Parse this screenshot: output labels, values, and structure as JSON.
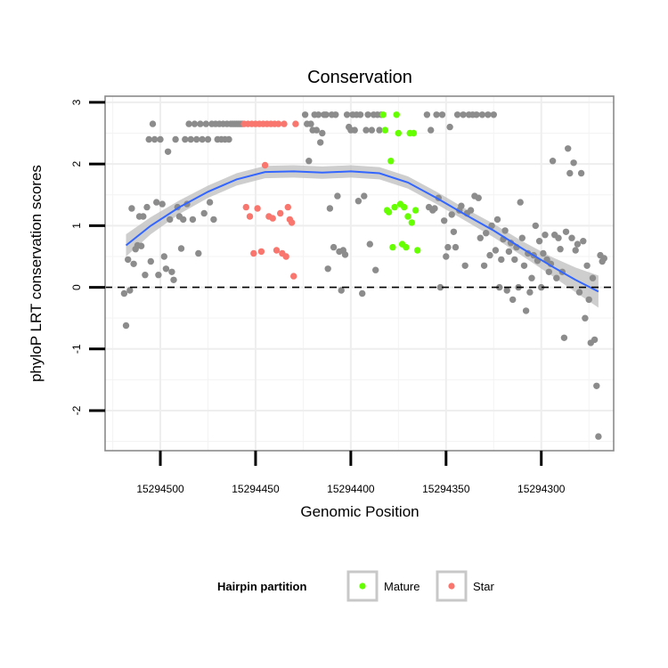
{
  "chart_data": {
    "type": "scatter",
    "title": "Conservation",
    "xlabel": "Genomic Position",
    "ylabel": "phyloP LRT conservation scores",
    "x_reversed": true,
    "xlim": [
      15294529,
      15294262
    ],
    "ylim": [
      -2.65,
      3.1
    ],
    "x_ticks": [
      15294500,
      15294450,
      15294400,
      15294350,
      15294300
    ],
    "x_tick_labels": [
      "15294500",
      "15294450",
      "15294400",
      "15294350",
      "15294300"
    ],
    "y_ticks": [
      -2,
      -1,
      0,
      1,
      2,
      3
    ],
    "y_tick_labels": [
      "-2",
      "-1",
      "0",
      "1",
      "2",
      "3"
    ],
    "reference_line": {
      "y": 0,
      "style": "dashed"
    },
    "grid": true,
    "legend": {
      "title": "Hairpin partition",
      "position": "bottom",
      "entries": [
        {
          "label": "Mature",
          "color": "#66ff00"
        },
        {
          "label": "Star",
          "color": "#f8766d"
        }
      ]
    },
    "colors": {
      "other": "#8c8c8c",
      "mature": "#66ff00",
      "star": "#f8766d",
      "smooth": "#3366ff",
      "ribbon": "#bebebe"
    },
    "smooth_fit": {
      "x": [
        15294518,
        15294505,
        15294490,
        15294475,
        15294460,
        15294445,
        15294430,
        15294415,
        15294400,
        15294385,
        15294370,
        15294355,
        15294340,
        15294325,
        15294310,
        15294295,
        15294282,
        15294270
      ],
      "y": [
        0.68,
        1.0,
        1.3,
        1.55,
        1.75,
        1.87,
        1.88,
        1.86,
        1.88,
        1.85,
        1.7,
        1.45,
        1.18,
        0.92,
        0.63,
        0.35,
        0.12,
        -0.07
      ],
      "se": [
        0.18,
        0.14,
        0.11,
        0.1,
        0.1,
        0.1,
        0.1,
        0.1,
        0.1,
        0.1,
        0.1,
        0.1,
        0.1,
        0.11,
        0.12,
        0.15,
        0.2,
        0.26
      ]
    },
    "series": [
      {
        "name": "Other",
        "points": [
          [
            15294519,
            -0.1
          ],
          [
            15294518,
            -0.62
          ],
          [
            15294517,
            0.45
          ],
          [
            15294516,
            -0.05
          ],
          [
            15294515,
            1.28
          ],
          [
            15294514,
            0.38
          ],
          [
            15294513,
            0.62
          ],
          [
            15294512,
            0.68
          ],
          [
            15294511,
            1.15
          ],
          [
            15294510,
            0.67
          ],
          [
            15294509,
            1.15
          ],
          [
            15294508,
            0.2
          ],
          [
            15294507,
            1.3
          ],
          [
            15294506,
            2.4
          ],
          [
            15294505,
            0.42
          ],
          [
            15294504,
            2.65
          ],
          [
            15294503,
            2.4
          ],
          [
            15294502,
            1.38
          ],
          [
            15294501,
            0.2
          ],
          [
            15294500,
            2.4
          ],
          [
            15294499,
            1.35
          ],
          [
            15294498,
            0.5
          ],
          [
            15294497,
            0.3
          ],
          [
            15294496,
            2.2
          ],
          [
            15294495,
            1.1
          ],
          [
            15294494,
            0.25
          ],
          [
            15294493,
            0.12
          ],
          [
            15294492,
            2.4
          ],
          [
            15294491,
            1.3
          ],
          [
            15294490,
            1.15
          ],
          [
            15294489,
            0.63
          ],
          [
            15294488,
            1.1
          ],
          [
            15294487,
            2.4
          ],
          [
            15294486,
            1.35
          ],
          [
            15294485,
            2.65
          ],
          [
            15294484,
            2.4
          ],
          [
            15294483,
            1.1
          ],
          [
            15294482,
            2.65
          ],
          [
            15294481,
            2.4
          ],
          [
            15294480,
            0.55
          ],
          [
            15294479,
            2.65
          ],
          [
            15294478,
            2.4
          ],
          [
            15294477,
            1.2
          ],
          [
            15294476,
            2.65
          ],
          [
            15294475,
            2.4
          ],
          [
            15294474,
            1.38
          ],
          [
            15294473,
            2.65
          ],
          [
            15294472,
            1.1
          ],
          [
            15294471,
            2.65
          ],
          [
            15294470,
            2.4
          ],
          [
            15294469,
            2.65
          ],
          [
            15294468,
            2.4
          ],
          [
            15294467,
            2.65
          ],
          [
            15294466,
            2.4
          ],
          [
            15294465,
            2.65
          ],
          [
            15294464,
            2.4
          ],
          [
            15294463,
            2.65
          ],
          [
            15294462,
            2.65
          ],
          [
            15294461,
            2.65
          ],
          [
            15294460,
            2.65
          ],
          [
            15294459,
            2.65
          ],
          [
            15294458,
            2.65
          ],
          [
            15294457,
            2.65
          ],
          [
            15294424,
            2.8
          ],
          [
            15294423,
            2.65
          ],
          [
            15294422,
            2.05
          ],
          [
            15294421,
            2.65
          ],
          [
            15294420,
            2.55
          ],
          [
            15294419,
            2.8
          ],
          [
            15294418,
            2.55
          ],
          [
            15294417,
            2.8
          ],
          [
            15294416,
            2.35
          ],
          [
            15294415,
            2.5
          ],
          [
            15294414,
            2.8
          ],
          [
            15294413,
            2.8
          ],
          [
            15294412,
            0.3
          ],
          [
            15294411,
            1.28
          ],
          [
            15294410,
            2.8
          ],
          [
            15294409,
            0.65
          ],
          [
            15294408,
            2.8
          ],
          [
            15294407,
            1.48
          ],
          [
            15294406,
            0.58
          ],
          [
            15294405,
            -0.05
          ],
          [
            15294404,
            0.6
          ],
          [
            15294403,
            0.53
          ],
          [
            15294402,
            2.8
          ],
          [
            15294401,
            2.6
          ],
          [
            15294400,
            2.55
          ],
          [
            15294399,
            2.8
          ],
          [
            15294398,
            2.55
          ],
          [
            15294397,
            2.8
          ],
          [
            15294396,
            1.4
          ],
          [
            15294395,
            2.8
          ],
          [
            15294394,
            -0.1
          ],
          [
            15294393,
            1.48
          ],
          [
            15294392,
            2.55
          ],
          [
            15294391,
            2.8
          ],
          [
            15294390,
            0.7
          ],
          [
            15294389,
            2.55
          ],
          [
            15294388,
            2.8
          ],
          [
            15294387,
            0.28
          ],
          [
            15294386,
            2.8
          ],
          [
            15294385,
            2.55
          ],
          [
            15294384,
            2.8
          ],
          [
            15294360,
            2.8
          ],
          [
            15294359,
            1.3
          ],
          [
            15294358,
            2.55
          ],
          [
            15294357,
            1.25
          ],
          [
            15294356,
            1.28
          ],
          [
            15294355,
            2.8
          ],
          [
            15294354,
            1.45
          ],
          [
            15294353,
            0.0
          ],
          [
            15294352,
            2.8
          ],
          [
            15294351,
            1.08
          ],
          [
            15294350,
            0.5
          ],
          [
            15294349,
            0.65
          ],
          [
            15294348,
            2.6
          ],
          [
            15294347,
            1.18
          ],
          [
            15294346,
            0.9
          ],
          [
            15294345,
            0.65
          ],
          [
            15294344,
            2.8
          ],
          [
            15294343,
            1.25
          ],
          [
            15294342,
            1.32
          ],
          [
            15294341,
            2.8
          ],
          [
            15294340,
            0.35
          ],
          [
            15294339,
            1.2
          ],
          [
            15294338,
            2.8
          ],
          [
            15294337,
            1.25
          ],
          [
            15294336,
            2.8
          ],
          [
            15294335,
            1.48
          ],
          [
            15294334,
            2.8
          ],
          [
            15294333,
            1.45
          ],
          [
            15294332,
            0.8
          ],
          [
            15294331,
            2.8
          ],
          [
            15294330,
            0.35
          ],
          [
            15294329,
            0.88
          ],
          [
            15294328,
            2.8
          ],
          [
            15294327,
            0.52
          ],
          [
            15294326,
            1.0
          ],
          [
            15294325,
            2.8
          ],
          [
            15294324,
            0.6
          ],
          [
            15294323,
            1.1
          ],
          [
            15294322,
            0.0
          ],
          [
            15294321,
            0.45
          ],
          [
            15294320,
            0.78
          ],
          [
            15294319,
            0.92
          ],
          [
            15294318,
            -0.05
          ],
          [
            15294317,
            0.58
          ],
          [
            15294316,
            0.72
          ],
          [
            15294315,
            -0.2
          ],
          [
            15294314,
            0.45
          ],
          [
            15294313,
            0.65
          ],
          [
            15294312,
            0.0
          ],
          [
            15294311,
            1.38
          ],
          [
            15294310,
            0.8
          ],
          [
            15294309,
            0.35
          ],
          [
            15294308,
            -0.38
          ],
          [
            15294307,
            0.55
          ],
          [
            15294306,
            -0.08
          ],
          [
            15294305,
            0.15
          ],
          [
            15294304,
            0.52
          ],
          [
            15294303,
            1.0
          ],
          [
            15294302,
            0.43
          ],
          [
            15294301,
            0.75
          ],
          [
            15294300,
            0.0
          ],
          [
            15294299,
            0.55
          ],
          [
            15294298,
            0.85
          ],
          [
            15294297,
            0.45
          ],
          [
            15294296,
            0.25
          ],
          [
            15294295,
            0.38
          ],
          [
            15294294,
            2.05
          ],
          [
            15294293,
            0.85
          ],
          [
            15294292,
            0.15
          ],
          [
            15294291,
            0.8
          ],
          [
            15294290,
            0.62
          ],
          [
            15294289,
            0.25
          ],
          [
            15294288,
            -0.82
          ],
          [
            15294287,
            0.9
          ],
          [
            15294286,
            2.25
          ],
          [
            15294285,
            1.85
          ],
          [
            15294284,
            0.8
          ],
          [
            15294283,
            2.02
          ],
          [
            15294282,
            0.6
          ],
          [
            15294281,
            0.7
          ],
          [
            15294280,
            -0.08
          ],
          [
            15294279,
            1.85
          ],
          [
            15294278,
            0.75
          ],
          [
            15294277,
            -0.5
          ],
          [
            15294276,
            0.35
          ],
          [
            15294275,
            -0.2
          ],
          [
            15294274,
            -0.9
          ],
          [
            15294273,
            0.15
          ],
          [
            15294272,
            -0.85
          ],
          [
            15294271,
            -1.6
          ],
          [
            15294270,
            -2.42
          ],
          [
            15294269,
            0.52
          ],
          [
            15294268,
            0.42
          ],
          [
            15294267,
            0.47
          ]
        ]
      },
      {
        "name": "Mature",
        "points": [
          [
            15294383,
            2.8
          ],
          [
            15294382,
            2.55
          ],
          [
            15294381,
            1.25
          ],
          [
            15294380,
            1.22
          ],
          [
            15294379,
            2.05
          ],
          [
            15294378,
            0.65
          ],
          [
            15294377,
            1.3
          ],
          [
            15294376,
            2.8
          ],
          [
            15294375,
            2.5
          ],
          [
            15294374,
            1.35
          ],
          [
            15294373,
            0.7
          ],
          [
            15294372,
            1.3
          ],
          [
            15294371,
            0.65
          ],
          [
            15294370,
            1.15
          ],
          [
            15294369,
            2.5
          ],
          [
            15294368,
            1.05
          ],
          [
            15294367,
            2.5
          ],
          [
            15294366,
            1.25
          ],
          [
            15294365,
            0.6
          ]
        ]
      },
      {
        "name": "Star",
        "points": [
          [
            15294456,
            2.65
          ],
          [
            15294455,
            1.3
          ],
          [
            15294454,
            2.65
          ],
          [
            15294453,
            1.15
          ],
          [
            15294452,
            2.65
          ],
          [
            15294451,
            0.55
          ],
          [
            15294450,
            2.65
          ],
          [
            15294449,
            1.28
          ],
          [
            15294448,
            2.65
          ],
          [
            15294447,
            0.58
          ],
          [
            15294446,
            2.65
          ],
          [
            15294445,
            1.98
          ],
          [
            15294444,
            2.65
          ],
          [
            15294443,
            1.15
          ],
          [
            15294442,
            2.65
          ],
          [
            15294441,
            1.12
          ],
          [
            15294440,
            2.65
          ],
          [
            15294439,
            0.6
          ],
          [
            15294438,
            2.65
          ],
          [
            15294437,
            1.2
          ],
          [
            15294436,
            0.55
          ],
          [
            15294435,
            2.65
          ],
          [
            15294434,
            0.5
          ],
          [
            15294433,
            1.3
          ],
          [
            15294432,
            1.1
          ],
          [
            15294431,
            1.05
          ],
          [
            15294430,
            0.18
          ],
          [
            15294429,
            2.65
          ]
        ]
      }
    ]
  }
}
